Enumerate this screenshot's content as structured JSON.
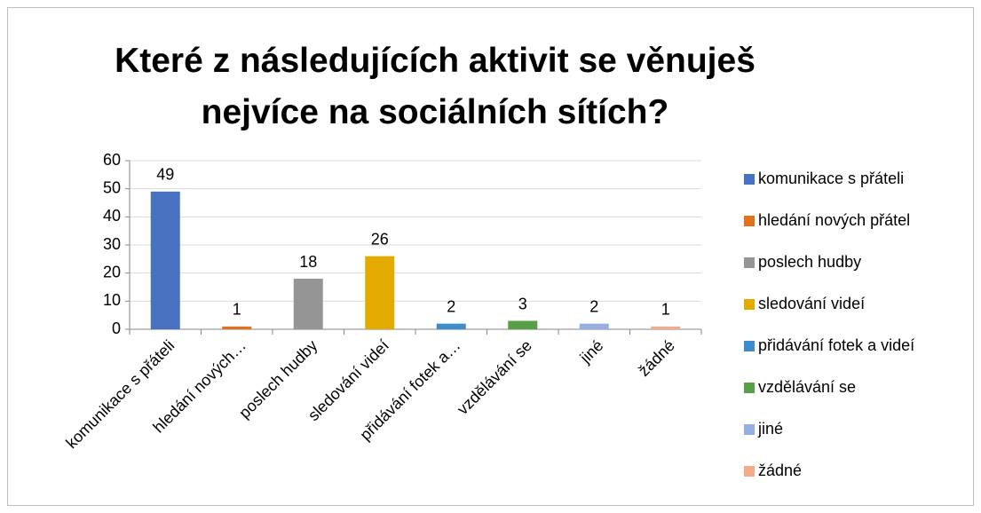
{
  "chart_data": {
    "type": "bar",
    "title": "Které z následujících aktivit se věnuješ nejvíce na sociálních sítích?",
    "categories": [
      "komunikace s přáteli",
      "hledání nových…",
      "poslech hudby",
      "sledování videí",
      "přidávání fotek a…",
      "vzdělávání se",
      "jiné",
      "žádné"
    ],
    "legend": [
      "komunikace s přáteli",
      "hledání nových přátel",
      "poslech hudby",
      "sledování videí",
      "přidávání fotek a videí",
      "vzdělávání se",
      "jiné",
      "žádné"
    ],
    "values": [
      49,
      1,
      18,
      26,
      2,
      3,
      2,
      1
    ],
    "colors": [
      "#4672c0",
      "#e2711b",
      "#959595",
      "#e4aa00",
      "#3d8ccb",
      "#58a045",
      "#98aee2",
      "#f4ab8c"
    ],
    "ylim": [
      0,
      60
    ],
    "yticks": [
      0,
      10,
      20,
      30,
      40,
      50,
      60
    ],
    "grid": true,
    "legend_position": "right"
  }
}
